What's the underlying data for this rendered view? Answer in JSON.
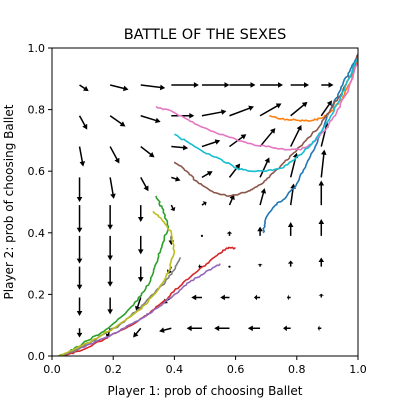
{
  "chart_data": {
    "type": "line",
    "title": "BATTLE OF THE SEXES",
    "xlabel": "Player 1: prob of choosing Ballet",
    "ylabel": "Player 2: prob of choosing Ballet",
    "xlim": [
      0.0,
      1.0
    ],
    "ylim": [
      0.0,
      1.0
    ],
    "xticks": [
      "0.0",
      "0.2",
      "0.4",
      "0.6",
      "0.8",
      "1.0"
    ],
    "yticks": [
      "0.0",
      "0.2",
      "0.4",
      "0.6",
      "0.8",
      "1.0"
    ],
    "grid": false,
    "vector_field": {
      "color": "#000000",
      "x": [
        0.09,
        0.19,
        0.29,
        0.39,
        0.49,
        0.58,
        0.68,
        0.78,
        0.88
      ],
      "y": [
        0.09,
        0.19,
        0.29,
        0.39,
        0.49,
        0.58,
        0.68,
        0.78,
        0.88
      ],
      "arrows": [
        {
          "x": 0.09,
          "y": 0.09,
          "dx": 0.0,
          "dy": -0.03
        },
        {
          "x": 0.19,
          "y": 0.09,
          "dx": -0.01,
          "dy": -0.035
        },
        {
          "x": 0.29,
          "y": 0.09,
          "dx": -0.025,
          "dy": -0.03
        },
        {
          "x": 0.39,
          "y": 0.09,
          "dx": -0.04,
          "dy": -0.01
        },
        {
          "x": 0.49,
          "y": 0.09,
          "dx": -0.05,
          "dy": 0.0
        },
        {
          "x": 0.58,
          "y": 0.09,
          "dx": -0.05,
          "dy": 0.0
        },
        {
          "x": 0.68,
          "y": 0.09,
          "dx": -0.04,
          "dy": 0.0
        },
        {
          "x": 0.78,
          "y": 0.09,
          "dx": -0.025,
          "dy": 0.0
        },
        {
          "x": 0.88,
          "y": 0.09,
          "dx": -0.012,
          "dy": 0.0
        },
        {
          "x": 0.09,
          "y": 0.19,
          "dx": 0.0,
          "dy": -0.06
        },
        {
          "x": 0.19,
          "y": 0.19,
          "dx": 0.0,
          "dy": -0.055
        },
        {
          "x": 0.29,
          "y": 0.19,
          "dx": -0.015,
          "dy": -0.045
        },
        {
          "x": 0.39,
          "y": 0.19,
          "dx": -0.03,
          "dy": -0.02
        },
        {
          "x": 0.49,
          "y": 0.19,
          "dx": -0.035,
          "dy": 0.0
        },
        {
          "x": 0.58,
          "y": 0.19,
          "dx": -0.03,
          "dy": 0.0
        },
        {
          "x": 0.68,
          "y": 0.19,
          "dx": -0.02,
          "dy": 0.0
        },
        {
          "x": 0.78,
          "y": 0.19,
          "dx": -0.012,
          "dy": 0.0
        },
        {
          "x": 0.88,
          "y": 0.19,
          "dx": 0.0,
          "dy": 0.012
        },
        {
          "x": 0.09,
          "y": 0.29,
          "dx": 0.0,
          "dy": -0.075
        },
        {
          "x": 0.19,
          "y": 0.29,
          "dx": 0.0,
          "dy": -0.065
        },
        {
          "x": 0.29,
          "y": 0.29,
          "dx": 0.0,
          "dy": -0.05
        },
        {
          "x": 0.39,
          "y": 0.29,
          "dx": -0.012,
          "dy": -0.025
        },
        {
          "x": 0.49,
          "y": 0.29,
          "dx": -0.012,
          "dy": 0.0
        },
        {
          "x": 0.58,
          "y": 0.29,
          "dx": 0.0,
          "dy": 0.0
        },
        {
          "x": 0.68,
          "y": 0.29,
          "dx": 0.0,
          "dy": 0.01
        },
        {
          "x": 0.78,
          "y": 0.29,
          "dx": 0.0,
          "dy": 0.02
        },
        {
          "x": 0.88,
          "y": 0.29,
          "dx": 0.0,
          "dy": 0.03
        },
        {
          "x": 0.09,
          "y": 0.39,
          "dx": 0.0,
          "dy": -0.09
        },
        {
          "x": 0.19,
          "y": 0.39,
          "dx": 0.0,
          "dy": -0.08
        },
        {
          "x": 0.29,
          "y": 0.39,
          "dx": 0.0,
          "dy": -0.06
        },
        {
          "x": 0.39,
          "y": 0.39,
          "dx": 0.0,
          "dy": -0.03
        },
        {
          "x": 0.49,
          "y": 0.39,
          "dx": 0.0,
          "dy": 0.0
        },
        {
          "x": 0.58,
          "y": 0.39,
          "dx": 0.0,
          "dy": 0.015
        },
        {
          "x": 0.68,
          "y": 0.39,
          "dx": 0.0,
          "dy": 0.03
        },
        {
          "x": 0.78,
          "y": 0.39,
          "dx": 0.0,
          "dy": 0.045
        },
        {
          "x": 0.88,
          "y": 0.39,
          "dx": 0.0,
          "dy": 0.055
        },
        {
          "x": 0.09,
          "y": 0.49,
          "dx": 0.0,
          "dy": -0.09
        },
        {
          "x": 0.19,
          "y": 0.49,
          "dx": 0.0,
          "dy": -0.08
        },
        {
          "x": 0.29,
          "y": 0.49,
          "dx": 0.0,
          "dy": -0.055
        },
        {
          "x": 0.39,
          "y": 0.49,
          "dx": 0.01,
          "dy": -0.02
        },
        {
          "x": 0.49,
          "y": 0.49,
          "dx": 0.015,
          "dy": 0.01
        },
        {
          "x": 0.58,
          "y": 0.49,
          "dx": 0.015,
          "dy": 0.035
        },
        {
          "x": 0.68,
          "y": 0.49,
          "dx": 0.015,
          "dy": 0.055
        },
        {
          "x": 0.78,
          "y": 0.49,
          "dx": 0.01,
          "dy": 0.07
        },
        {
          "x": 0.88,
          "y": 0.49,
          "dx": 0.0,
          "dy": 0.08
        },
        {
          "x": 0.09,
          "y": 0.58,
          "dx": 0.0,
          "dy": -0.08
        },
        {
          "x": 0.19,
          "y": 0.58,
          "dx": 0.012,
          "dy": -0.07
        },
        {
          "x": 0.29,
          "y": 0.58,
          "dx": 0.025,
          "dy": -0.045
        },
        {
          "x": 0.39,
          "y": 0.58,
          "dx": 0.03,
          "dy": -0.01
        },
        {
          "x": 0.49,
          "y": 0.58,
          "dx": 0.035,
          "dy": 0.02
        },
        {
          "x": 0.58,
          "y": 0.58,
          "dx": 0.035,
          "dy": 0.045
        },
        {
          "x": 0.68,
          "y": 0.58,
          "dx": 0.03,
          "dy": 0.065
        },
        {
          "x": 0.78,
          "y": 0.58,
          "dx": 0.02,
          "dy": 0.08
        },
        {
          "x": 0.88,
          "y": 0.58,
          "dx": 0.01,
          "dy": 0.09
        },
        {
          "x": 0.09,
          "y": 0.68,
          "dx": 0.012,
          "dy": -0.065
        },
        {
          "x": 0.19,
          "y": 0.68,
          "dx": 0.03,
          "dy": -0.055
        },
        {
          "x": 0.29,
          "y": 0.68,
          "dx": 0.045,
          "dy": -0.035
        },
        {
          "x": 0.39,
          "y": 0.68,
          "dx": 0.055,
          "dy": -0.005
        },
        {
          "x": 0.49,
          "y": 0.68,
          "dx": 0.06,
          "dy": 0.02
        },
        {
          "x": 0.58,
          "y": 0.68,
          "dx": 0.055,
          "dy": 0.04
        },
        {
          "x": 0.68,
          "y": 0.68,
          "dx": 0.05,
          "dy": 0.06
        },
        {
          "x": 0.78,
          "y": 0.68,
          "dx": 0.035,
          "dy": 0.07
        },
        {
          "x": 0.88,
          "y": 0.68,
          "dx": 0.02,
          "dy": 0.08
        },
        {
          "x": 0.09,
          "y": 0.78,
          "dx": 0.025,
          "dy": -0.045
        },
        {
          "x": 0.19,
          "y": 0.78,
          "dx": 0.05,
          "dy": -0.035
        },
        {
          "x": 0.29,
          "y": 0.78,
          "dx": 0.065,
          "dy": -0.02
        },
        {
          "x": 0.39,
          "y": 0.78,
          "dx": 0.075,
          "dy": 0.0
        },
        {
          "x": 0.49,
          "y": 0.78,
          "dx": 0.08,
          "dy": 0.015
        },
        {
          "x": 0.58,
          "y": 0.78,
          "dx": 0.08,
          "dy": 0.03
        },
        {
          "x": 0.68,
          "y": 0.78,
          "dx": 0.07,
          "dy": 0.04
        },
        {
          "x": 0.78,
          "y": 0.78,
          "dx": 0.055,
          "dy": 0.045
        },
        {
          "x": 0.88,
          "y": 0.78,
          "dx": 0.035,
          "dy": 0.05
        },
        {
          "x": 0.09,
          "y": 0.88,
          "dx": 0.03,
          "dy": -0.02
        },
        {
          "x": 0.19,
          "y": 0.88,
          "dx": 0.06,
          "dy": -0.015
        },
        {
          "x": 0.29,
          "y": 0.88,
          "dx": 0.08,
          "dy": -0.01
        },
        {
          "x": 0.39,
          "y": 0.88,
          "dx": 0.09,
          "dy": 0.0
        },
        {
          "x": 0.49,
          "y": 0.88,
          "dx": 0.09,
          "dy": 0.0
        },
        {
          "x": 0.58,
          "y": 0.88,
          "dx": 0.085,
          "dy": 0.0
        },
        {
          "x": 0.68,
          "y": 0.88,
          "dx": 0.075,
          "dy": 0.0
        },
        {
          "x": 0.78,
          "y": 0.88,
          "dx": 0.06,
          "dy": 0.0
        },
        {
          "x": 0.88,
          "y": 0.88,
          "dx": 0.04,
          "dy": 0.0
        }
      ]
    },
    "series": [
      {
        "color": "#1f77b4",
        "points": [
          [
            0.69,
            0.4
          ],
          [
            0.7,
            0.45
          ],
          [
            0.73,
            0.49
          ],
          [
            0.76,
            0.51
          ],
          [
            0.8,
            0.56
          ],
          [
            0.83,
            0.62
          ],
          [
            0.86,
            0.68
          ],
          [
            0.89,
            0.75
          ],
          [
            0.92,
            0.82
          ],
          [
            0.95,
            0.88
          ],
          [
            0.98,
            0.94
          ],
          [
            1.0,
            0.98
          ]
        ]
      },
      {
        "color": "#ff7f0e",
        "points": [
          [
            0.71,
            0.78
          ],
          [
            0.75,
            0.77
          ],
          [
            0.8,
            0.765
          ],
          [
            0.85,
            0.765
          ],
          [
            0.89,
            0.775
          ],
          [
            0.92,
            0.8
          ],
          [
            0.95,
            0.84
          ],
          [
            0.98,
            0.9
          ],
          [
            1.0,
            0.97
          ]
        ]
      },
      {
        "color": "#2ca02c",
        "points": [
          [
            0.34,
            0.52
          ],
          [
            0.36,
            0.48
          ],
          [
            0.38,
            0.42
          ],
          [
            0.36,
            0.36
          ],
          [
            0.34,
            0.3
          ],
          [
            0.32,
            0.24
          ],
          [
            0.28,
            0.18
          ],
          [
            0.23,
            0.13
          ],
          [
            0.17,
            0.08
          ],
          [
            0.1,
            0.04
          ],
          [
            0.05,
            0.01
          ],
          [
            0.02,
            0.0
          ]
        ]
      },
      {
        "color": "#d62728",
        "points": [
          [
            0.6,
            0.35
          ],
          [
            0.57,
            0.35
          ],
          [
            0.53,
            0.32
          ],
          [
            0.48,
            0.28
          ],
          [
            0.43,
            0.24
          ],
          [
            0.38,
            0.19
          ],
          [
            0.32,
            0.14
          ],
          [
            0.26,
            0.1
          ],
          [
            0.18,
            0.06
          ],
          [
            0.1,
            0.02
          ],
          [
            0.04,
            0.0
          ]
        ]
      },
      {
        "color": "#9467bd",
        "points": [
          [
            0.55,
            0.3
          ],
          [
            0.5,
            0.27
          ],
          [
            0.45,
            0.24
          ],
          [
            0.4,
            0.2
          ],
          [
            0.35,
            0.16
          ],
          [
            0.29,
            0.12
          ],
          [
            0.22,
            0.08
          ],
          [
            0.15,
            0.05
          ],
          [
            0.08,
            0.02
          ],
          [
            0.03,
            0.0
          ]
        ]
      },
      {
        "color": "#8c564b",
        "points": [
          [
            0.4,
            0.63
          ],
          [
            0.44,
            0.6
          ],
          [
            0.48,
            0.56
          ],
          [
            0.53,
            0.53
          ],
          [
            0.58,
            0.52
          ],
          [
            0.63,
            0.53
          ],
          [
            0.67,
            0.55
          ],
          [
            0.71,
            0.58
          ],
          [
            0.75,
            0.62
          ],
          [
            0.79,
            0.66
          ],
          [
            0.83,
            0.7
          ],
          [
            0.87,
            0.74
          ],
          [
            0.91,
            0.8
          ],
          [
            0.95,
            0.86
          ],
          [
            0.98,
            0.92
          ],
          [
            1.0,
            0.98
          ]
        ]
      },
      {
        "color": "#e377c2",
        "points": [
          [
            0.34,
            0.81
          ],
          [
            0.4,
            0.79
          ],
          [
            0.46,
            0.76
          ],
          [
            0.52,
            0.73
          ],
          [
            0.58,
            0.71
          ],
          [
            0.64,
            0.69
          ],
          [
            0.7,
            0.68
          ],
          [
            0.76,
            0.67
          ],
          [
            0.81,
            0.67
          ],
          [
            0.85,
            0.69
          ],
          [
            0.89,
            0.73
          ],
          [
            0.93,
            0.79
          ],
          [
            0.97,
            0.87
          ],
          [
            1.0,
            0.96
          ]
        ]
      },
      {
        "color": "#7f7f7f",
        "points": [
          [
            0.42,
            0.32
          ],
          [
            0.4,
            0.28
          ],
          [
            0.37,
            0.24
          ],
          [
            0.33,
            0.2
          ],
          [
            0.28,
            0.15
          ],
          [
            0.22,
            0.1
          ],
          [
            0.15,
            0.06
          ],
          [
            0.08,
            0.02
          ],
          [
            0.03,
            0.0
          ]
        ]
      },
      {
        "color": "#bcbd22",
        "points": [
          [
            0.33,
            0.47
          ],
          [
            0.36,
            0.44
          ],
          [
            0.39,
            0.4
          ],
          [
            0.4,
            0.34
          ],
          [
            0.38,
            0.27
          ],
          [
            0.35,
            0.22
          ],
          [
            0.31,
            0.17
          ],
          [
            0.26,
            0.13
          ],
          [
            0.2,
            0.09
          ],
          [
            0.13,
            0.05
          ],
          [
            0.07,
            0.02
          ],
          [
            0.02,
            0.0
          ]
        ]
      },
      {
        "color": "#17becf",
        "points": [
          [
            0.4,
            0.72
          ],
          [
            0.45,
            0.69
          ],
          [
            0.5,
            0.66
          ],
          [
            0.55,
            0.64
          ],
          [
            0.6,
            0.61
          ],
          [
            0.65,
            0.6
          ],
          [
            0.7,
            0.6
          ],
          [
            0.75,
            0.61
          ],
          [
            0.78,
            0.63
          ],
          [
            0.82,
            0.66
          ],
          [
            0.86,
            0.7
          ],
          [
            0.9,
            0.76
          ],
          [
            0.94,
            0.83
          ],
          [
            0.97,
            0.9
          ],
          [
            1.0,
            0.97
          ]
        ]
      }
    ]
  }
}
